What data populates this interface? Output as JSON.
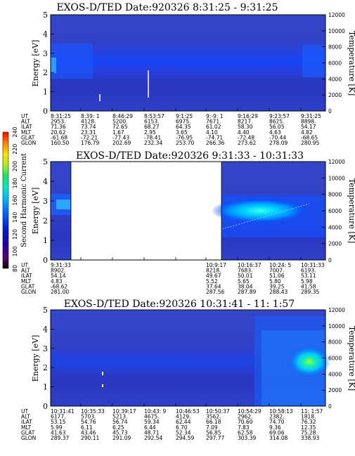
{
  "chart_data": [
    {
      "type": "heatmap",
      "title": "EXOS-D/TED   Date:920326  8:31:25 - 9:31:25",
      "ylabel": "Energy [eV]",
      "y2label": "Temperature [K]",
      "ylim": [
        0,
        5
      ],
      "y2lim": [
        0,
        12000
      ],
      "yticks": [
        "0",
        "1",
        "2",
        "3",
        "4",
        "5"
      ],
      "y2ticks": [
        "0",
        "2000",
        "4000",
        "6000",
        "8000",
        "10000",
        "12000"
      ],
      "table_rows": [
        {
          "label": "UT",
          "values": [
            "8:31:25",
            "8:39: 1",
            "8:46:29",
            "8:53:57",
            "9:1:25",
            "9:-9: 1",
            "9:16:29",
            "9:23:57",
            "9:31:25"
          ]
        },
        {
          "label": "ALT",
          "values": [
            "2953.",
            "4128.",
            "5200.",
            "6153.",
            "6975.",
            "7671.",
            "8217.",
            "8625.",
            "8898."
          ]
        },
        {
          "label": "ILAT",
          "values": [
            "71.36",
            "73.74",
            "72.65",
            "68.27",
            "64.35",
            "61.02",
            "58.30",
            "56.05",
            "54.17"
          ]
        },
        {
          "label": "MLT",
          "values": [
            "20.62",
            "23.31",
            "1.67",
            "2.95",
            "3.65",
            "4.10",
            "4.40",
            "4.63",
            "4.82"
          ]
        },
        {
          "label": "GLAT",
          "values": [
            "-61.68",
            "-72.21",
            "-77.43",
            "-78.41",
            "-76.95",
            "-74.71",
            "-72.48",
            "-70.44",
            "-68.65"
          ]
        },
        {
          "label": "GLON",
          "values": [
            "160.50",
            "176.79",
            "202.69",
            "232.34",
            "253.70",
            "266.36",
            "273.62",
            "278.09",
            "280.95"
          ]
        }
      ]
    },
    {
      "type": "heatmap",
      "title": "EXOS-D/TED   Date:920326  9:31:33 - 10:31:33",
      "ylabel": "Energy [eV]",
      "y2label": "Temperature [K]",
      "ylim": [
        0,
        5
      ],
      "y2lim": [
        0,
        12000
      ],
      "yticks": [
        "0",
        "1",
        "2",
        "3",
        "4",
        "5"
      ],
      "y2ticks": [
        "0",
        "2000",
        "4000",
        "6000",
        "8000",
        "10000",
        "12000"
      ],
      "table_rows": [
        {
          "label": "UT",
          "values": [
            "9:31:33",
            "",
            "",
            "",
            "",
            "10:9:17",
            "10:16:37",
            "10:24: 5",
            "10:31:33"
          ]
        },
        {
          "label": "ALT",
          "values": [
            "8902.",
            "",
            "",
            "",
            "",
            "8218.",
            "7683.",
            "7007.",
            "6193."
          ]
        },
        {
          "label": "ILAT",
          "values": [
            "54.14",
            "",
            "",
            "",
            "",
            "49.67",
            "50.01",
            "51.06",
            "53.11"
          ]
        },
        {
          "label": "MLT",
          "values": [
            "4.83",
            "",
            "",
            "",
            "",
            "5.52",
            "5.65",
            "5.80",
            "5.98"
          ]
        },
        {
          "label": "GLAT",
          "values": [
            "-68.62",
            "",
            "",
            "",
            "",
            "37.64",
            "38.04",
            "39.25",
            "41.58"
          ]
        },
        {
          "label": "GLON",
          "values": [
            "281.00",
            "",
            "",
            "",
            "",
            "287.56",
            "287.89",
            "288.43",
            "289.35"
          ]
        }
      ]
    },
    {
      "type": "heatmap",
      "title": "EXOS-D/TED   Date:920326  10:31:41 - 11: 1:57",
      "ylabel": "Energy [eV]",
      "y2label": "Temperature [K]",
      "ylim": [
        0,
        5
      ],
      "y2lim": [
        0,
        12000
      ],
      "yticks": [
        "0",
        "1",
        "2",
        "3",
        "4",
        "5"
      ],
      "y2ticks": [
        "0",
        "2000",
        "4000",
        "6000",
        "8000",
        "10000",
        "12000"
      ],
      "table_rows": [
        {
          "label": "UT",
          "values": [
            "10:31:41",
            "10:35:33",
            "10:39:17",
            "10:43: 9",
            "10:46:53",
            "10:50:37",
            "10:54:29",
            "10:58:13",
            "11: 1:57"
          ]
        },
        {
          "label": "ALT",
          "values": [
            "6177.",
            "5703.",
            "5213.",
            "4675.",
            "4129.",
            "3562.",
            "2962.",
            "2382.",
            "1818."
          ]
        },
        {
          "label": "ILAT",
          "values": [
            "53.15",
            "54.76",
            "56.74",
            "59.34",
            "62.44",
            "66.18",
            "70.60",
            "74.70",
            "76.32"
          ]
        },
        {
          "label": "MLT",
          "values": [
            "5.99",
            "6.11",
            "6.25",
            "6.44",
            "6.70",
            "7.09",
            "7.83",
            "9.36",
            "12.35"
          ]
        },
        {
          "label": "GLAT",
          "values": [
            "41.63",
            "43.46",
            "45.73",
            "48.71",
            "52.34",
            "56.85",
            "62.58",
            "69.06",
            "75.28"
          ]
        },
        {
          "label": "GLON",
          "values": [
            "289.37",
            "290.11",
            "291.09",
            "292.54",
            "294.59",
            "297.77",
            "303.39",
            "314.08",
            "338.93"
          ]
        }
      ]
    }
  ],
  "colorbar": {
    "label": "Second Harmonic Current",
    "ticks": [
      "80",
      "100",
      "120",
      "140",
      "160",
      "180",
      "200",
      "220",
      "240"
    ],
    "colors": [
      "#000000",
      "#6a007a",
      "#2a00a0",
      "#0010d0",
      "#0060ff",
      "#00b8ff",
      "#00e8c0",
      "#20e060",
      "#c8f020",
      "#ffe000",
      "#ff8000",
      "#ff0000"
    ]
  }
}
